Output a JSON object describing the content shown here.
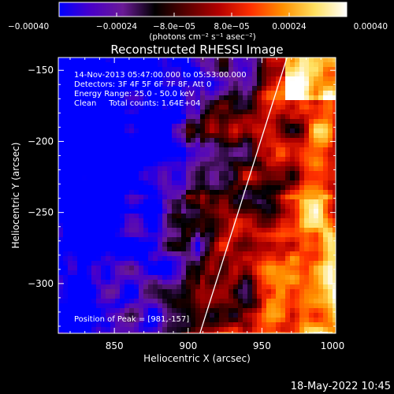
{
  "chart_data": {
    "type": "heatmap",
    "title": "Reconstructed RHESSI Image",
    "xlabel": "Heliocentric X (arcsec)",
    "ylabel": "Heliocentric Y (arcsec)",
    "xlim": [
      812,
      1000
    ],
    "ylim": [
      -335,
      -141
    ],
    "x_ticks": [
      850,
      900,
      950,
      1000
    ],
    "y_ticks": [
      -150,
      -200,
      -250,
      -300
    ],
    "x_tick_labels": [
      "850",
      "900",
      "950",
      "1000"
    ],
    "y_tick_labels": [
      "−150",
      "−200",
      "−250",
      "−300"
    ],
    "colorbar": {
      "min": -0.0004,
      "max": 0.0004,
      "tick_values": [
        -0.0004,
        -0.00024,
        -8e-05,
        8e-05,
        0.00024,
        0.0004
      ],
      "tick_labels": [
        "−0.00040",
        "−0.00024",
        "−8.0e−05",
        "8.0e−05",
        "0.00024",
        "0.00040"
      ],
      "label": "(photons cm⁻² s⁻¹ asec⁻²)",
      "colors": [
        "#0000ff",
        "#4a00c8",
        "#6a1a96",
        "#000000",
        "#5a0000",
        "#b40000",
        "#ff3000",
        "#ff9000",
        "#ffe060",
        "#ffffff"
      ]
    },
    "annotations": {
      "time_range": "14-Nov-2013 05:47:00.000 to 05:53:00.000",
      "detectors": "Detectors: 3F 4F 5F 6F 7F 8F, Att 0",
      "energy_range": "Energy Range: 25.0 - 50.0 keV",
      "clean_counts": "Clean     Total counts: 1.64E+04",
      "peak": "Position of Peak = [981,-157]"
    },
    "limb_line": {
      "x": [
        908,
        967
      ],
      "y": [
        -335,
        -141
      ]
    }
  },
  "footer": {
    "timestamp": "18-May-2022 10:45"
  }
}
